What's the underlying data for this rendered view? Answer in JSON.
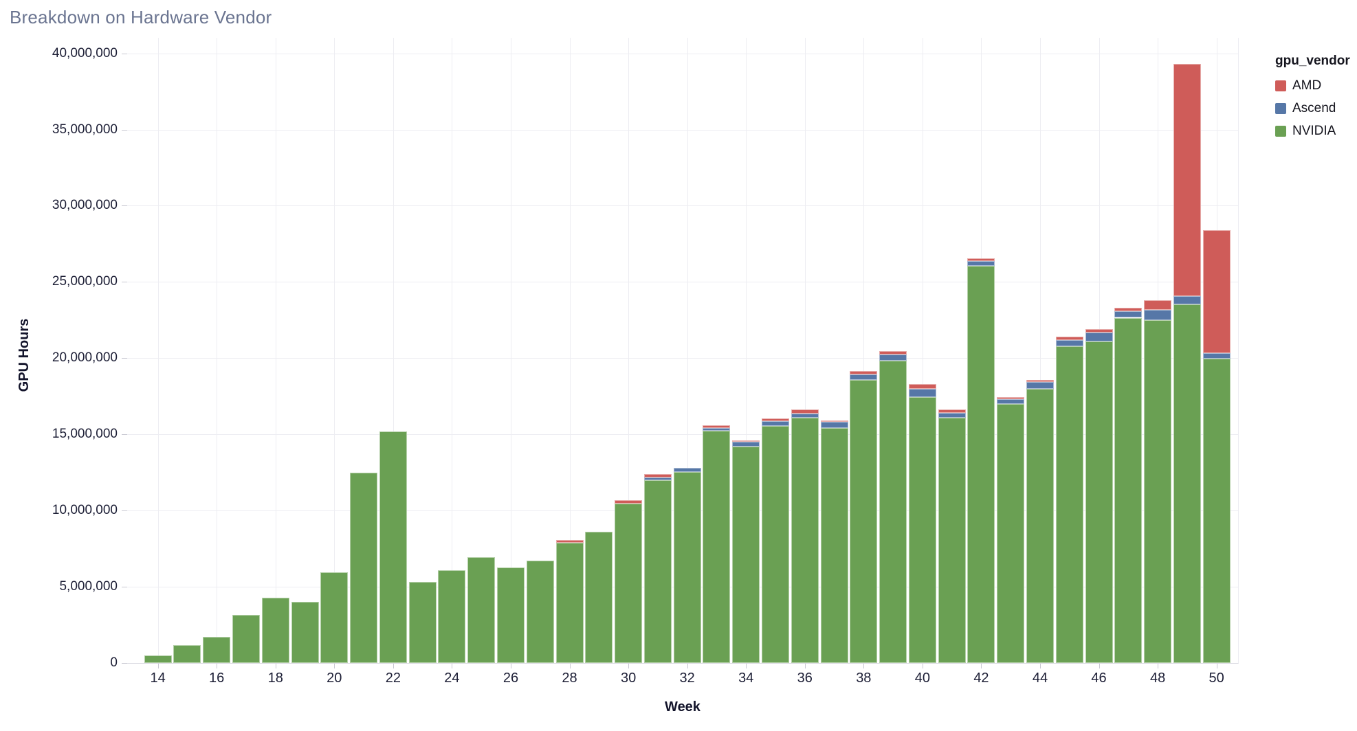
{
  "title": "Breakdown on Hardware Vendor",
  "axes": {
    "x": {
      "title": "Week",
      "ticks": [
        14,
        16,
        18,
        20,
        22,
        24,
        26,
        28,
        30,
        32,
        34,
        36,
        38,
        40,
        42,
        44,
        46,
        48,
        50
      ]
    },
    "y": {
      "title": "GPU Hours",
      "ticks": [
        {
          "value": 0,
          "label": "0"
        },
        {
          "value": 5000000,
          "label": "5,000,000"
        },
        {
          "value": 10000000,
          "label": "10,000,000"
        },
        {
          "value": 15000000,
          "label": "15,000,000"
        },
        {
          "value": 20000000,
          "label": "20,000,000"
        },
        {
          "value": 25000000,
          "label": "25,000,000"
        },
        {
          "value": 30000000,
          "label": "30,000,000"
        },
        {
          "value": 35000000,
          "label": "35,000,000"
        },
        {
          "value": 40000000,
          "label": "40,000,000"
        }
      ]
    }
  },
  "legend": {
    "title": "gpu_vendor",
    "items": [
      {
        "label": "AMD",
        "color": "#cf5c59"
      },
      {
        "label": "Ascend",
        "color": "#5677a7"
      },
      {
        "label": "NVIDIA",
        "color": "#6aa053"
      }
    ]
  },
  "chart_data": {
    "type": "bar",
    "stacked": true,
    "title": "Breakdown on Hardware Vendor",
    "xlabel": "Week",
    "ylabel": "GPU Hours",
    "ylim": [
      0,
      40000000
    ],
    "grid": true,
    "legend_position": "right",
    "stack_order_bottom_to_top": [
      "NVIDIA",
      "Ascend",
      "AMD"
    ],
    "x": [
      14,
      15,
      16,
      17,
      18,
      19,
      20,
      21,
      22,
      23,
      24,
      25,
      26,
      27,
      28,
      29,
      30,
      31,
      32,
      33,
      34,
      35,
      36,
      37,
      38,
      39,
      40,
      41,
      42,
      43,
      44,
      45,
      46,
      47,
      48,
      49,
      50
    ],
    "series": [
      {
        "name": "NVIDIA",
        "color": "#6aa053",
        "values": [
          500000,
          1150000,
          1700000,
          3150000,
          4300000,
          4000000,
          5950000,
          12500000,
          15200000,
          5300000,
          6100000,
          6950000,
          6250000,
          6700000,
          7900000,
          8600000,
          10450000,
          12000000,
          12550000,
          15250000,
          14200000,
          15550000,
          16100000,
          15400000,
          18550000,
          19850000,
          17450000,
          16100000,
          26050000,
          17000000,
          18000000,
          20800000,
          21100000,
          22650000,
          22500000,
          23550000,
          19950000
        ]
      },
      {
        "name": "Ascend",
        "color": "#5677a7",
        "values": [
          0,
          0,
          0,
          0,
          0,
          0,
          0,
          0,
          0,
          0,
          0,
          0,
          0,
          0,
          0,
          0,
          0,
          150000,
          250000,
          150000,
          300000,
          300000,
          250000,
          400000,
          400000,
          400000,
          550000,
          300000,
          300000,
          300000,
          450000,
          400000,
          600000,
          450000,
          650000,
          500000,
          400000
        ]
      },
      {
        "name": "AMD",
        "color": "#cf5c59",
        "values": [
          0,
          0,
          0,
          0,
          0,
          0,
          0,
          0,
          0,
          0,
          0,
          0,
          0,
          0,
          150000,
          0,
          250000,
          250000,
          0,
          200000,
          100000,
          200000,
          300000,
          100000,
          200000,
          200000,
          300000,
          250000,
          200000,
          150000,
          100000,
          200000,
          200000,
          200000,
          650000,
          15250000,
          8050000
        ]
      }
    ]
  }
}
